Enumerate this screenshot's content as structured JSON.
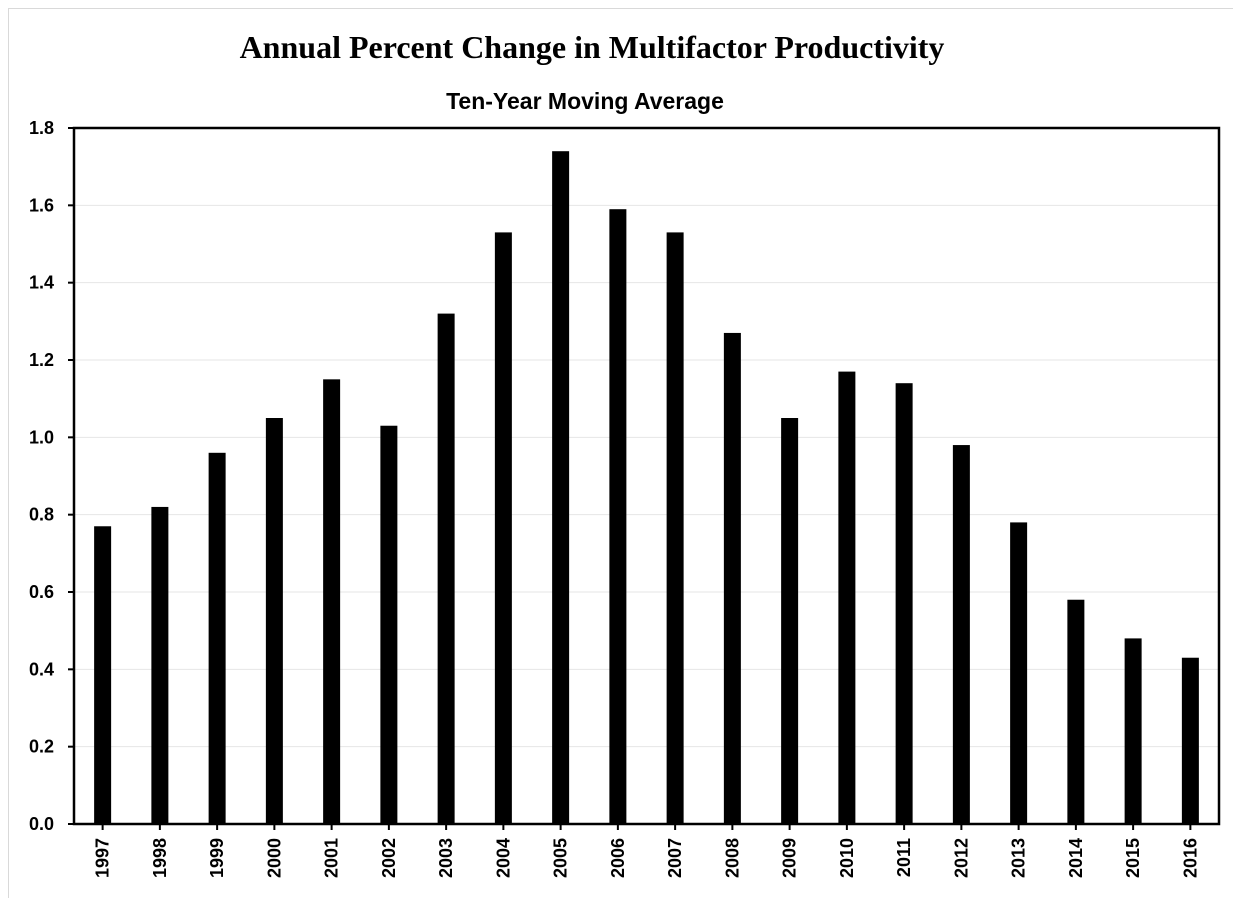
{
  "chart_data": {
    "type": "bar",
    "title": "Annual Percent Change in Multifactor Productivity",
    "subtitle": "Ten-Year Moving Average",
    "xlabel": "",
    "ylabel": "",
    "categories": [
      "1997",
      "1998",
      "1999",
      "2000",
      "2001",
      "2002",
      "2003",
      "2004",
      "2005",
      "2006",
      "2007",
      "2008",
      "2009",
      "2010",
      "2011",
      "2012",
      "2013",
      "2014",
      "2015",
      "2016"
    ],
    "values": [
      0.77,
      0.82,
      0.96,
      1.05,
      1.15,
      1.03,
      1.32,
      1.53,
      1.74,
      1.59,
      1.53,
      1.27,
      1.05,
      1.17,
      1.14,
      0.98,
      0.78,
      0.58,
      0.48,
      0.43
    ],
    "ylim": [
      0,
      1.8
    ],
    "yticks": [
      "0.0",
      "0.2",
      "0.4",
      "0.6",
      "0.8",
      "1.0",
      "1.2",
      "1.4",
      "1.6",
      "1.8"
    ],
    "ytick_values": [
      0,
      0.2,
      0.4,
      0.6,
      0.8,
      1.0,
      1.2,
      1.4,
      1.6,
      1.8
    ],
    "grid": true,
    "legend": "none",
    "bar_color": "#000000",
    "grid_color": "#e6e6e6"
  }
}
